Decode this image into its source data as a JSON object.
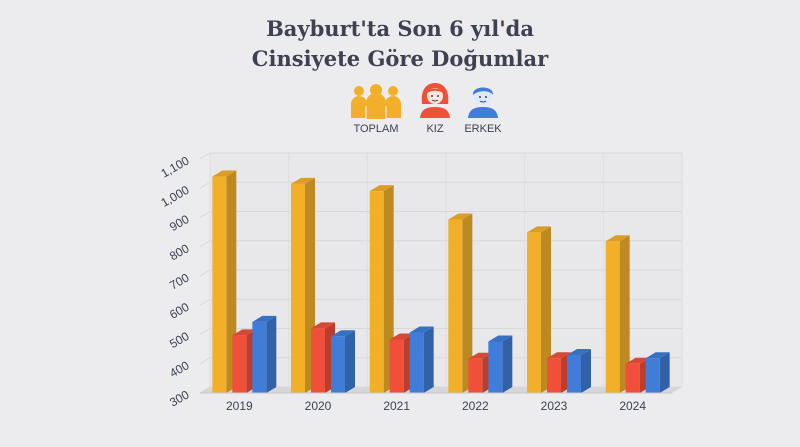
{
  "chart_data": {
    "type": "bar",
    "title_line1": "Bayburt'ta Son 6 yıl'da",
    "title_line2": "Cinsiyete Göre Doğumlar",
    "categories": [
      "2019",
      "2020",
      "2021",
      "2022",
      "2023",
      "2024"
    ],
    "series": [
      {
        "name": "TOPLAM",
        "color": "#f2b02a",
        "values": [
          1040,
          1015,
          990,
          893,
          849,
          819
        ]
      },
      {
        "name": "KIZ",
        "color": "#f0503a",
        "values": [
          497,
          521,
          483,
          417,
          419,
          400
        ]
      },
      {
        "name": "ERKEK",
        "color": "#3f7dd8",
        "values": [
          543,
          494,
          507,
          476,
          430,
          419
        ]
      }
    ],
    "ylim": [
      300,
      1100
    ],
    "yticks": [
      "300",
      "400",
      "500",
      "600",
      "700",
      "800",
      "900",
      "1,000",
      "1,100"
    ],
    "grid": true,
    "legend_position": "top-center"
  },
  "legend": {
    "total_label": "TOPLAM",
    "total_icon": "group-people-icon",
    "girl_label": "KIZ",
    "girl_icon": "girl-icon",
    "boy_label": "ERKEK",
    "boy_icon": "boy-icon"
  }
}
